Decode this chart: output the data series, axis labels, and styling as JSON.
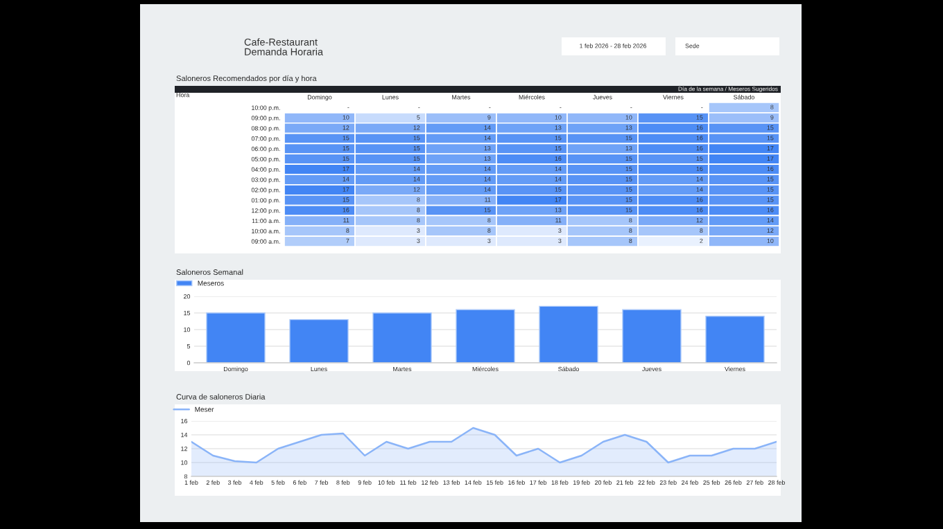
{
  "chart_data": [
    {
      "type": "heatmap",
      "title": "Saloneros Recomendados por día y hora",
      "subtitle": "Día de la semana / Meseros Sugeridos",
      "ylabel": "Hora",
      "color": "#4285f4",
      "annotations": [
        "Cafe-Restaurant",
        "Demanda Horaria",
        "1 feb 2026 - 28 feb 2026",
        "Sede"
      ],
      "categories": [
        "Domingo",
        "Lunes",
        "Martes",
        "Miércoles",
        "Jueves",
        "Viernes",
        "Sábado"
      ],
      "y_categories": [
        "10:00 p.m.",
        "09:00 p.m.",
        "08:00 p.m.",
        "07:00 p.m.",
        "06:00 p.m.",
        "05:00 p.m.",
        "04:00 p.m.",
        "03:00 p.m.",
        "02:00 p.m.",
        "01:00 p.m.",
        "12:00 p.m.",
        "11:00 a.m.",
        "10:00 a.m.",
        "09:00 a.m."
      ],
      "cells": [
        [
          null,
          null,
          null,
          null,
          null,
          null,
          8
        ],
        [
          10,
          5,
          9,
          10,
          10,
          15,
          9
        ],
        [
          12,
          12,
          14,
          13,
          13,
          16,
          15
        ],
        [
          15,
          15,
          14,
          15,
          15,
          16,
          15
        ],
        [
          15,
          15,
          13,
          15,
          13,
          16,
          17
        ],
        [
          15,
          15,
          13,
          16,
          15,
          15,
          17
        ],
        [
          17,
          14,
          14,
          14,
          15,
          16,
          16
        ],
        [
          14,
          14,
          14,
          14,
          15,
          14,
          15
        ],
        [
          17,
          12,
          14,
          15,
          15,
          14,
          15
        ],
        [
          15,
          8,
          11,
          17,
          15,
          16,
          15
        ],
        [
          16,
          8,
          15,
          13,
          15,
          16,
          16
        ],
        [
          11,
          8,
          8,
          11,
          8,
          12,
          14
        ],
        [
          8,
          3,
          8,
          3,
          8,
          8,
          12
        ],
        [
          7,
          3,
          3,
          3,
          8,
          2,
          10
        ]
      ],
      "cell_labels": [
        [
          "-",
          "-",
          "-",
          "-",
          "-",
          "-",
          "8"
        ],
        [
          "10",
          "5",
          "9",
          "10",
          "10",
          "15",
          "9"
        ],
        [
          "12",
          "12",
          "14",
          "13",
          "13",
          "16",
          "15"
        ],
        [
          "15",
          "15",
          "14",
          "15",
          "15",
          "16",
          "15"
        ],
        [
          "15",
          "15",
          "13",
          "15",
          "13",
          "16",
          "17"
        ],
        [
          "15",
          "15",
          "13",
          "16",
          "15",
          "15",
          "17"
        ],
        [
          "17",
          "14",
          "14",
          "14",
          "15",
          "16",
          "16"
        ],
        [
          "14",
          "14",
          "14",
          "14",
          "15",
          "14",
          "15"
        ],
        [
          "17",
          "12",
          "14",
          "15",
          "15",
          "14",
          "15"
        ],
        [
          "15",
          "8",
          "11",
          "17",
          "15",
          "16",
          "15"
        ],
        [
          "16",
          "8",
          "15",
          "13",
          "15",
          "16",
          "16"
        ],
        [
          "11",
          "8",
          "8",
          "11",
          "8",
          "12",
          "14"
        ],
        [
          "8",
          "3",
          "8",
          "3",
          "8",
          "8",
          "12"
        ],
        [
          "7",
          "3",
          "3",
          "3",
          "8",
          "2",
          "10"
        ]
      ]
    },
    {
      "type": "bar",
      "title": "Saloneros Semanal",
      "legend": "top left",
      "grid": "y",
      "categories": [
        "Domingo",
        "Lunes",
        "Martes",
        "Miércoles",
        "Sábado",
        "Jueves",
        "Viernes"
      ],
      "series": [
        {
          "name": "Meseros",
          "color": "#4285f4",
          "values": [
            15,
            13,
            15,
            16,
            17,
            16,
            14
          ]
        }
      ],
      "ylim": [
        0,
        20
      ],
      "yticks": [
        0,
        5,
        10,
        15,
        20
      ]
    },
    {
      "type": "area",
      "title": "Curva de saloneros Diaria",
      "legend": "top left",
      "grid": "y",
      "categories": [
        "1 feb",
        "2 feb",
        "3 feb",
        "4 feb",
        "5 feb",
        "6 feb",
        "7 feb",
        "8 feb",
        "9 feb",
        "10 feb",
        "11 feb",
        "12 feb",
        "13 feb",
        "14 feb",
        "15 feb",
        "16 feb",
        "17 feb",
        "18 feb",
        "19 feb",
        "20 feb",
        "21 feb",
        "22 feb",
        "23 feb",
        "24 feb",
        "25 feb",
        "26 feb",
        "27 feb",
        "28 feb"
      ],
      "series": [
        {
          "name": "Meser",
          "color": "#8ab4f8",
          "values": [
            13,
            11,
            10.2,
            10,
            12,
            13,
            14,
            14.2,
            11,
            13,
            12,
            13,
            13,
            15,
            14,
            11,
            12,
            10,
            11,
            13,
            14,
            13,
            10,
            11,
            11,
            12,
            12,
            13
          ]
        }
      ],
      "ylim": [
        8,
        16
      ],
      "yticks": [
        8,
        10,
        12,
        14,
        16
      ]
    }
  ]
}
